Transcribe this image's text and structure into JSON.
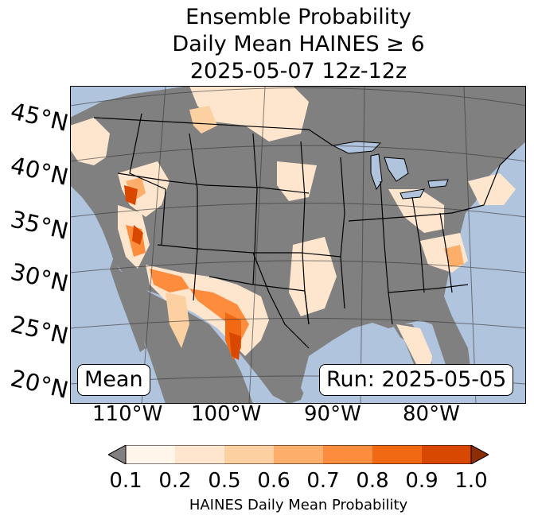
{
  "title": {
    "line1": "Ensemble Probability",
    "line2": "Daily Mean HAINES ≥ 6",
    "line3": "2025-05-07 12z-12z"
  },
  "lat_labels": [
    "45°N",
    "40°N",
    "35°N",
    "30°N",
    "25°N",
    "20°N"
  ],
  "lon_labels": [
    "110°W",
    "100°W",
    "90°W",
    "80°W"
  ],
  "boxes": {
    "mean": "Mean",
    "run": "Run: 2025-05-05"
  },
  "colorbar": {
    "ticks": [
      "0.1",
      "0.2",
      "0.5",
      "0.6",
      "0.7",
      "0.8",
      "0.9",
      "1.0"
    ],
    "label": "HAINES Daily Mean Probability",
    "under_color": "#808080",
    "colors": [
      "#fff5eb",
      "#fee6ce",
      "#fdd0a2",
      "#fdae6b",
      "#fd8d3c",
      "#f16913",
      "#d94801"
    ],
    "over_color": "#8c2d04"
  },
  "colors": {
    "ocean": "#b0c4de",
    "land_low": "#808080"
  }
}
